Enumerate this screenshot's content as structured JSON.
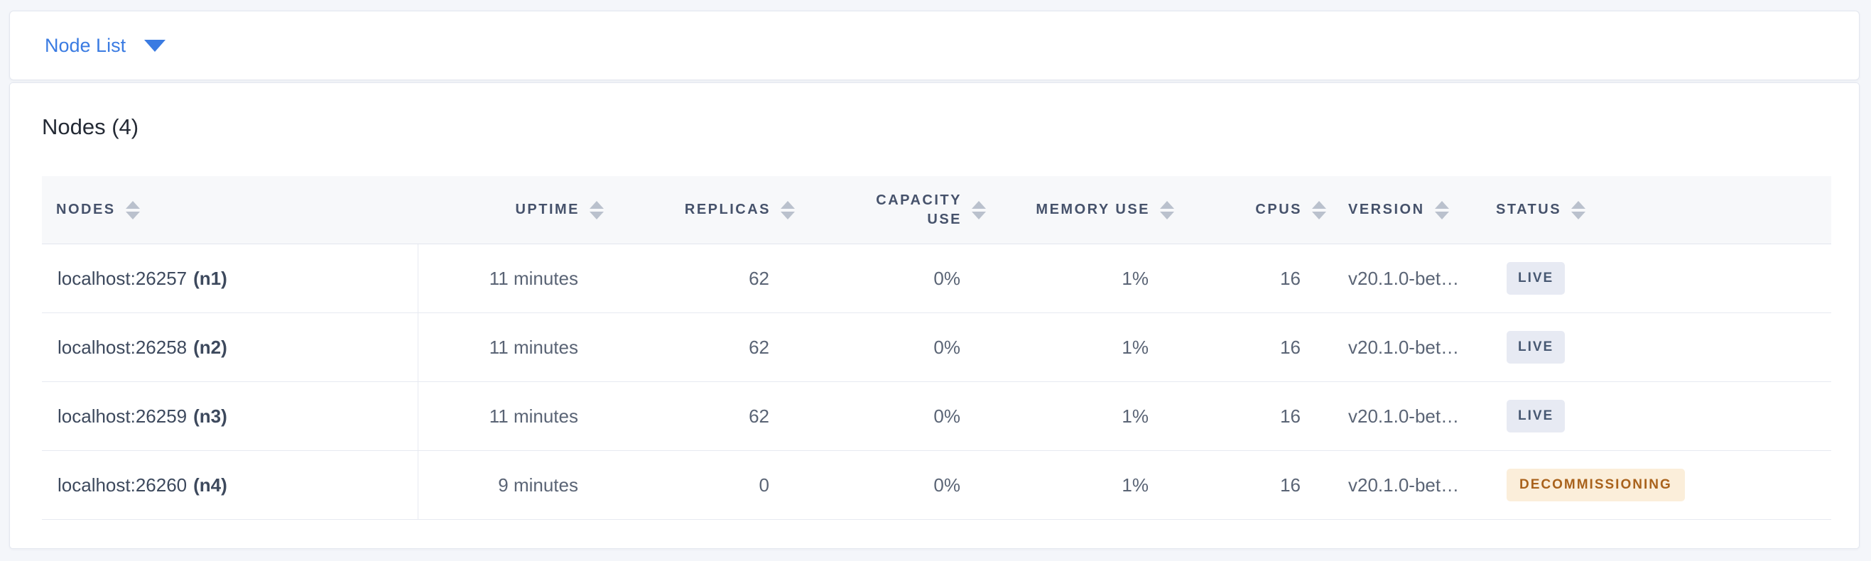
{
  "toolbar": {
    "view_selector": {
      "label": "Node List",
      "icon": "caret-down-icon"
    }
  },
  "content": {
    "title": "Nodes (4)",
    "table": {
      "columns": [
        {
          "label": "NODES",
          "align": "left",
          "sortable": true
        },
        {
          "label": "UPTIME",
          "align": "right",
          "sortable": true
        },
        {
          "label": "REPLICAS",
          "align": "right",
          "sortable": true
        },
        {
          "label": "CAPACITY USE",
          "align": "right",
          "sortable": true
        },
        {
          "label": "MEMORY USE",
          "align": "right",
          "sortable": true
        },
        {
          "label": "CPUS",
          "align": "right",
          "sortable": true
        },
        {
          "label": "VERSION",
          "align": "left",
          "sortable": true
        },
        {
          "label": "STATUS",
          "align": "left",
          "sortable": true
        }
      ],
      "rows": [
        {
          "address": "localhost:26257",
          "node_id": "(n1)",
          "uptime": "11 minutes",
          "replicas": "62",
          "capacity_use": "0%",
          "memory_use": "1%",
          "cpus": "16",
          "version": "v20.1.0-bet…",
          "status": "LIVE",
          "status_type": "live"
        },
        {
          "address": "localhost:26258",
          "node_id": "(n2)",
          "uptime": "11 minutes",
          "replicas": "62",
          "capacity_use": "0%",
          "memory_use": "1%",
          "cpus": "16",
          "version": "v20.1.0-bet…",
          "status": "LIVE",
          "status_type": "live"
        },
        {
          "address": "localhost:26259",
          "node_id": "(n3)",
          "uptime": "11 minutes",
          "replicas": "62",
          "capacity_use": "0%",
          "memory_use": "1%",
          "cpus": "16",
          "version": "v20.1.0-bet…",
          "status": "LIVE",
          "status_type": "live"
        },
        {
          "address": "localhost:26260",
          "node_id": "(n4)",
          "uptime": "9 minutes",
          "replicas": "0",
          "capacity_use": "0%",
          "memory_use": "1%",
          "cpus": "16",
          "version": "v20.1.0-bet…",
          "status": "DECOMMISSIONING",
          "status_type": "decommissioning"
        }
      ]
    },
    "status_colors": {
      "live": {
        "background": "#e7eaf3",
        "text": "#475872"
      },
      "decommissioning": {
        "background": "#fbeeda",
        "text": "#a9621c"
      }
    }
  },
  "colors": {
    "accent_blue": "#3a7be2",
    "page_background": "#f4f6fa",
    "table_header_background": "#f7f8fa",
    "header_text": "#46526b",
    "row_text": "#5a6475",
    "node_text": "#3d495d",
    "separator": "#e7eaf1"
  }
}
